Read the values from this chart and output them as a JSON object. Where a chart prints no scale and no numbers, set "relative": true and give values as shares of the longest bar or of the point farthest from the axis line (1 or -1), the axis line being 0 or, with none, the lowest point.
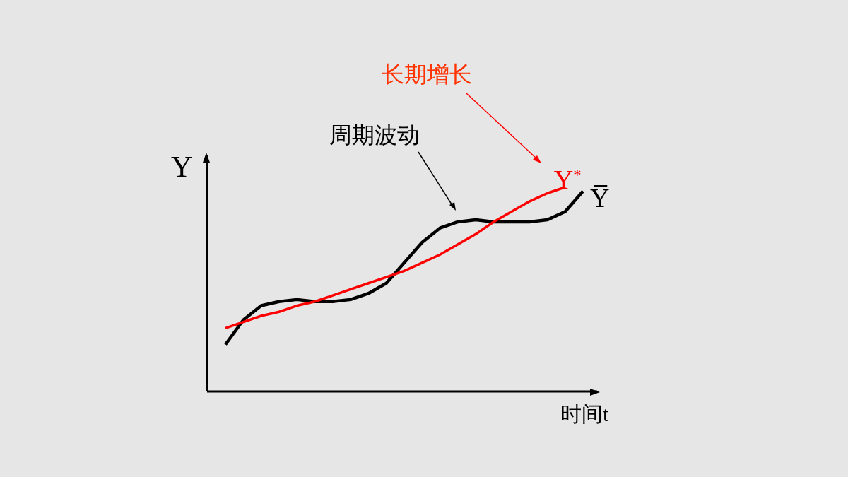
{
  "chart_data": {
    "type": "line",
    "relative": true,
    "xlabel": "时间t",
    "ylabel": "Y",
    "annotations": [
      "长期增长",
      "周期波动"
    ],
    "categories": [
      null,
      null,
      null,
      null,
      null,
      null,
      null,
      null,
      null,
      null,
      null,
      null,
      null,
      null,
      null,
      null,
      null,
      null,
      null,
      null,
      null
    ],
    "series": [
      {
        "name": "Y̅",
        "color": "#000000",
        "values": [
          0.23,
          0.35,
          0.42,
          0.44,
          0.45,
          0.44,
          0.44,
          0.45,
          0.48,
          0.53,
          0.63,
          0.73,
          0.8,
          0.83,
          0.84,
          0.83,
          0.83,
          0.83,
          0.84,
          0.88,
          0.98
        ]
      },
      {
        "name": "Y$^{*}$",
        "color": "#ff0000",
        "values": [
          0.31,
          0.34,
          0.37,
          0.39,
          0.42,
          0.44,
          0.47,
          0.5,
          0.53,
          0.56,
          0.59,
          0.63,
          0.67,
          0.72,
          0.77,
          0.83,
          0.88,
          0.93,
          0.97,
          1,
          null
        ]
      }
    ],
    "grid": false,
    "legend": "top right",
    "marker": "none",
    "line_style": "solid"
  }
}
